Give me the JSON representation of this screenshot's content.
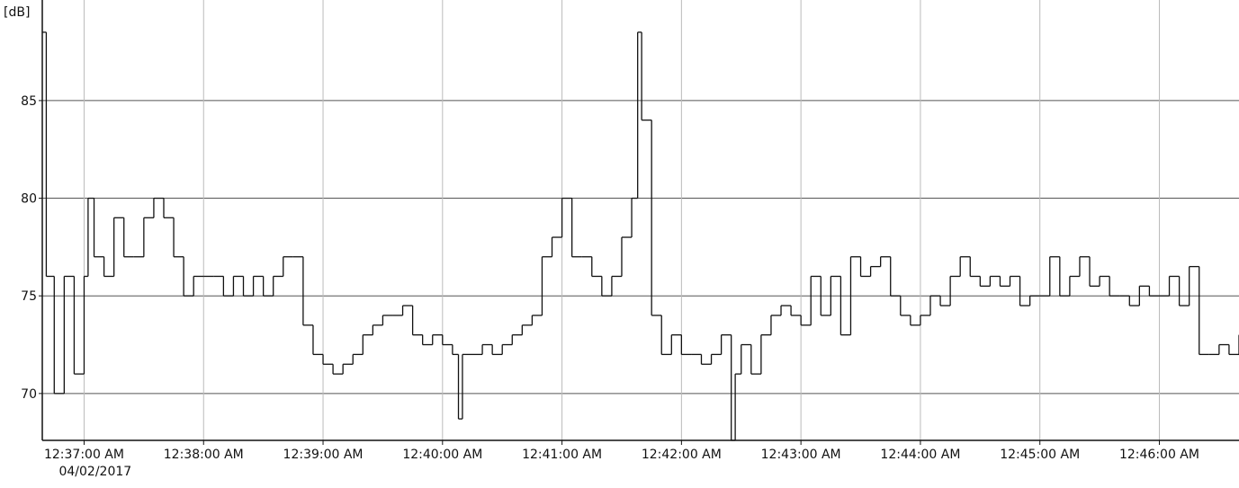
{
  "chart_data": {
    "type": "step-line",
    "y_label": "[dB]",
    "x_date_label": "04/02/2017",
    "ylim": [
      67.6,
      89
    ],
    "yticks": [
      70,
      75,
      80,
      85
    ],
    "grid": true,
    "xlim": [
      "12:36:39 AM",
      "12:46:40 AM"
    ],
    "xticks": [
      "12:37:00 AM",
      "12:38:00 AM",
      "12:39:00 AM",
      "12:40:00 AM",
      "12:41:00 AM",
      "12:42:00 AM",
      "12:43:00 AM",
      "12:44:00 AM",
      "12:45:00 AM",
      "12:46:00 AM"
    ],
    "x": [
      "12:36:39 AM",
      "12:36:41 AM",
      "12:36:45 AM",
      "12:36:50 AM",
      "12:36:55 AM",
      "12:37:00 AM",
      "12:37:02 AM",
      "12:37:05 AM",
      "12:37:10 AM",
      "12:37:15 AM",
      "12:37:20 AM",
      "12:37:25 AM",
      "12:37:30 AM",
      "12:37:35 AM",
      "12:37:40 AM",
      "12:37:45 AM",
      "12:37:50 AM",
      "12:37:55 AM",
      "12:38:00 AM",
      "12:38:05 AM",
      "12:38:10 AM",
      "12:38:15 AM",
      "12:38:20 AM",
      "12:38:25 AM",
      "12:38:30 AM",
      "12:38:35 AM",
      "12:38:40 AM",
      "12:38:45 AM",
      "12:38:50 AM",
      "12:38:55 AM",
      "12:39:00 AM",
      "12:39:05 AM",
      "12:39:10 AM",
      "12:39:15 AM",
      "12:39:20 AM",
      "12:39:25 AM",
      "12:39:30 AM",
      "12:39:35 AM",
      "12:39:40 AM",
      "12:39:45 AM",
      "12:39:50 AM",
      "12:39:55 AM",
      "12:40:00 AM",
      "12:40:05 AM",
      "12:40:08 AM",
      "12:40:10 AM",
      "12:40:15 AM",
      "12:40:20 AM",
      "12:40:25 AM",
      "12:40:30 AM",
      "12:40:35 AM",
      "12:40:40 AM",
      "12:40:45 AM",
      "12:40:50 AM",
      "12:40:55 AM",
      "12:41:00 AM",
      "12:41:05 AM",
      "12:41:10 AM",
      "12:41:15 AM",
      "12:41:20 AM",
      "12:41:25 AM",
      "12:41:30 AM",
      "12:41:35 AM",
      "12:41:38 AM",
      "12:41:40 AM",
      "12:41:45 AM",
      "12:41:50 AM",
      "12:41:55 AM",
      "12:42:00 AM",
      "12:42:05 AM",
      "12:42:10 AM",
      "12:42:15 AM",
      "12:42:20 AM",
      "12:42:25 AM",
      "12:42:27 AM",
      "12:42:30 AM",
      "12:42:35 AM",
      "12:42:40 AM",
      "12:42:45 AM",
      "12:42:50 AM",
      "12:42:55 AM",
      "12:43:00 AM",
      "12:43:05 AM",
      "12:43:10 AM",
      "12:43:15 AM",
      "12:43:20 AM",
      "12:43:25 AM",
      "12:43:30 AM",
      "12:43:35 AM",
      "12:43:40 AM",
      "12:43:45 AM",
      "12:43:50 AM",
      "12:43:55 AM",
      "12:44:00 AM",
      "12:44:05 AM",
      "12:44:10 AM",
      "12:44:15 AM",
      "12:44:20 AM",
      "12:44:25 AM",
      "12:44:30 AM",
      "12:44:35 AM",
      "12:44:40 AM",
      "12:44:45 AM",
      "12:44:50 AM",
      "12:44:55 AM",
      "12:45:00 AM",
      "12:45:05 AM",
      "12:45:10 AM",
      "12:45:15 AM",
      "12:45:20 AM",
      "12:45:25 AM",
      "12:45:30 AM",
      "12:45:35 AM",
      "12:45:40 AM",
      "12:45:45 AM",
      "12:45:50 AM",
      "12:45:55 AM",
      "12:46:00 AM",
      "12:46:05 AM",
      "12:46:10 AM",
      "12:46:15 AM",
      "12:46:20 AM",
      "12:46:25 AM",
      "12:46:30 AM",
      "12:46:35 AM",
      "12:46:40 AM"
    ],
    "values": [
      88.5,
      76,
      70,
      76,
      71,
      76,
      80,
      77,
      76,
      79,
      77,
      77,
      79,
      80,
      79,
      77,
      75,
      76,
      76,
      76,
      75,
      76,
      75,
      76,
      75,
      76,
      77,
      77,
      73.5,
      72,
      71.5,
      71,
      71.5,
      72,
      73,
      73.5,
      74,
      74,
      74.5,
      73,
      72.5,
      73,
      72.5,
      72,
      68.7,
      72,
      72,
      72.5,
      72,
      72.5,
      73,
      73.5,
      74,
      77,
      78,
      80,
      77,
      77,
      76,
      75,
      76,
      78,
      80,
      88.5,
      84,
      74,
      72,
      73,
      72,
      72,
      71.5,
      72,
      73,
      67.6,
      71,
      72.5,
      71,
      73,
      74,
      74.5,
      74,
      73.5,
      76,
      74,
      76,
      73,
      77,
      76,
      76.5,
      77,
      75,
      74,
      73.5,
      74,
      75,
      74.5,
      76,
      77,
      76,
      75.5,
      76,
      75.5,
      76,
      74.5,
      75,
      75,
      77,
      75,
      76,
      77,
      75.5,
      76,
      75,
      75,
      74.5,
      75.5,
      75,
      75,
      76,
      74.5,
      76.5,
      72,
      72,
      72.5,
      72,
      73
    ],
    "color": "#111111"
  }
}
